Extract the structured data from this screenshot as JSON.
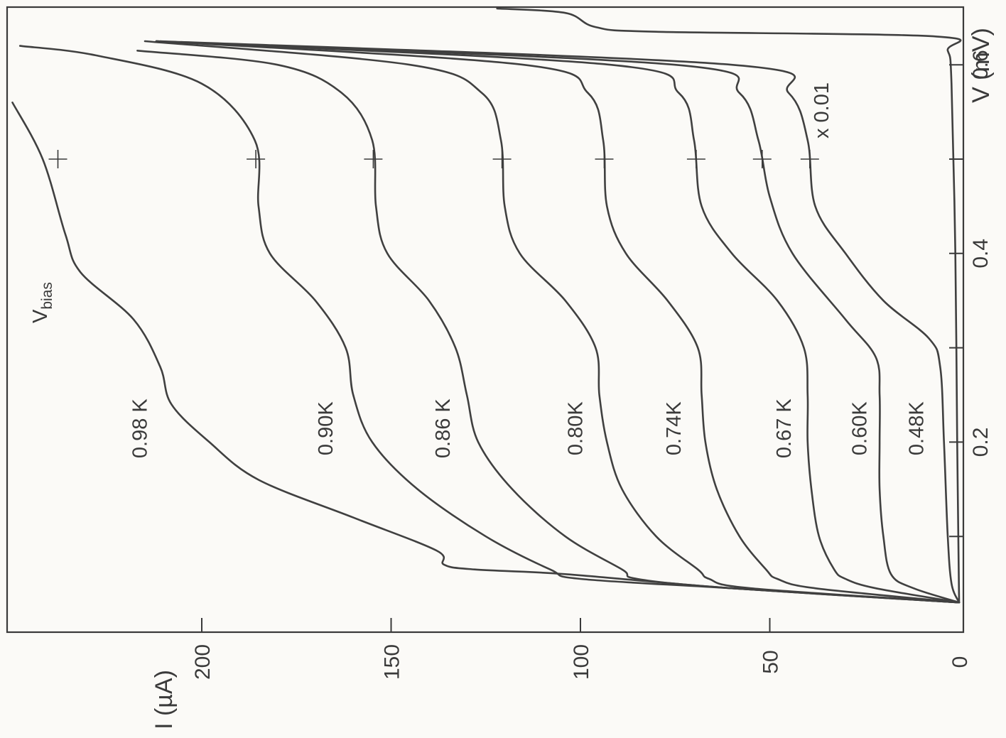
{
  "chart_data": {
    "type": "line",
    "title": "",
    "xlabel": "V (mV)",
    "ylabel": "I (µA)",
    "xlim": [
      0,
      0.74
    ],
    "ylim": [
      0,
      245
    ],
    "x_ticks": [
      {
        "value": 0.1,
        "label": ""
      },
      {
        "value": 0.2,
        "label": "0.2"
      },
      {
        "value": 0.3,
        "label": ""
      },
      {
        "value": 0.4,
        "label": "0.4"
      },
      {
        "value": 0.5,
        "label": ""
      },
      {
        "value": 0.6,
        "label": "0.6"
      },
      {
        "value": 0.7,
        "label": ""
      }
    ],
    "y_ticks": [
      {
        "value": 0,
        "label": "0"
      },
      {
        "value": 50,
        "label": "50"
      },
      {
        "value": 100,
        "label": "100"
      },
      {
        "value": 150,
        "label": "150"
      },
      {
        "value": 200,
        "label": "200"
      }
    ],
    "grid": false,
    "legend": "none",
    "annotations": {
      "vbias_label": "V",
      "vbias_sub": "bias",
      "vbias_x": 0.5,
      "scale_note": "x 0.01"
    },
    "series": [
      {
        "name": "0.98 K",
        "label_at": [
          0.225,
          210
        ],
        "points": [
          [
            0.03,
            0
          ],
          [
            0.045,
            60
          ],
          [
            0.06,
            104
          ],
          [
            0.065,
            128
          ],
          [
            0.07,
            136
          ],
          [
            0.085,
            138
          ],
          [
            0.12,
            160
          ],
          [
            0.16,
            185
          ],
          [
            0.2,
            198
          ],
          [
            0.24,
            208
          ],
          [
            0.28,
            211
          ],
          [
            0.33,
            218
          ],
          [
            0.38,
            232
          ],
          [
            0.42,
            236
          ],
          [
            0.5,
            242
          ],
          [
            0.56,
            250
          ]
        ]
      },
      {
        "name": "0.90K",
        "label_at": [
          0.225,
          161
        ],
        "points": [
          [
            0.03,
            0
          ],
          [
            0.045,
            60
          ],
          [
            0.055,
            100
          ],
          [
            0.065,
            108
          ],
          [
            0.1,
            125
          ],
          [
            0.15,
            143
          ],
          [
            0.2,
            155
          ],
          [
            0.25,
            160
          ],
          [
            0.3,
            162
          ],
          [
            0.35,
            170
          ],
          [
            0.4,
            182
          ],
          [
            0.45,
            185
          ],
          [
            0.52,
            186
          ],
          [
            0.58,
            200
          ],
          [
            0.61,
            228
          ],
          [
            0.62,
            248
          ]
        ]
      },
      {
        "name": "0.86 K",
        "label_at": [
          0.225,
          130
        ],
        "points": [
          [
            0.03,
            0
          ],
          [
            0.045,
            60
          ],
          [
            0.055,
            85
          ],
          [
            0.065,
            89
          ],
          [
            0.1,
            104
          ],
          [
            0.15,
            118
          ],
          [
            0.2,
            127
          ],
          [
            0.25,
            130
          ],
          [
            0.3,
            133
          ],
          [
            0.35,
            140
          ],
          [
            0.4,
            151
          ],
          [
            0.45,
            154
          ],
          [
            0.52,
            155
          ],
          [
            0.57,
            163
          ],
          [
            0.6,
            180
          ],
          [
            0.615,
            217
          ]
        ]
      },
      {
        "name": "0.80K",
        "label_at": [
          0.225,
          95
        ],
        "points": [
          [
            0.03,
            0
          ],
          [
            0.045,
            55
          ],
          [
            0.055,
            66
          ],
          [
            0.065,
            69
          ],
          [
            0.1,
            80
          ],
          [
            0.15,
            89
          ],
          [
            0.2,
            93
          ],
          [
            0.25,
            95
          ],
          [
            0.3,
            96
          ],
          [
            0.35,
            104
          ],
          [
            0.4,
            116
          ],
          [
            0.45,
            120
          ],
          [
            0.52,
            121
          ],
          [
            0.57,
            126
          ],
          [
            0.6,
            145
          ],
          [
            0.625,
            215
          ]
        ]
      },
      {
        "name": "0.74K",
        "label_at": [
          0.225,
          69
        ],
        "points": [
          [
            0.03,
            0
          ],
          [
            0.045,
            38
          ],
          [
            0.055,
            48
          ],
          [
            0.065,
            51
          ],
          [
            0.1,
            58
          ],
          [
            0.15,
            64
          ],
          [
            0.2,
            67
          ],
          [
            0.25,
            68
          ],
          [
            0.3,
            69
          ],
          [
            0.35,
            77
          ],
          [
            0.4,
            88
          ],
          [
            0.45,
            93
          ],
          [
            0.52,
            94
          ],
          [
            0.57,
            98
          ],
          [
            0.6,
            115
          ],
          [
            0.625,
            212
          ]
        ]
      },
      {
        "name": "0.67 K",
        "label_at": [
          0.225,
          40
        ],
        "points": [
          [
            0.03,
            0
          ],
          [
            0.045,
            22
          ],
          [
            0.055,
            30
          ],
          [
            0.065,
            33
          ],
          [
            0.1,
            37
          ],
          [
            0.15,
            39
          ],
          [
            0.2,
            40
          ],
          [
            0.25,
            40
          ],
          [
            0.3,
            41
          ],
          [
            0.35,
            48
          ],
          [
            0.4,
            60
          ],
          [
            0.45,
            68
          ],
          [
            0.52,
            70
          ],
          [
            0.57,
            74
          ],
          [
            0.6,
            92
          ],
          [
            0.625,
            212
          ]
        ]
      },
      {
        "name": "0.60K",
        "label_at": [
          0.225,
          20
        ],
        "points": [
          [
            0.03,
            0
          ],
          [
            0.045,
            12
          ],
          [
            0.06,
            18
          ],
          [
            0.1,
            20
          ],
          [
            0.15,
            21
          ],
          [
            0.2,
            21
          ],
          [
            0.25,
            21
          ],
          [
            0.29,
            22
          ],
          [
            0.33,
            30
          ],
          [
            0.4,
            44
          ],
          [
            0.46,
            50
          ],
          [
            0.52,
            53
          ],
          [
            0.57,
            58
          ],
          [
            0.6,
            75
          ],
          [
            0.625,
            212
          ]
        ]
      },
      {
        "name": "0.48K",
        "label_at": [
          0.225,
          5
        ],
        "points": [
          [
            0.03,
            0
          ],
          [
            0.05,
            2
          ],
          [
            0.1,
            3
          ],
          [
            0.2,
            4
          ],
          [
            0.28,
            5
          ],
          [
            0.31,
            8
          ],
          [
            0.35,
            20
          ],
          [
            0.4,
            30
          ],
          [
            0.45,
            38
          ],
          [
            0.52,
            40
          ],
          [
            0.57,
            45
          ],
          [
            0.6,
            60
          ],
          [
            0.625,
            211
          ]
        ]
      },
      {
        "name": "",
        "label_at": null,
        "points": [
          [
            0.03,
            0
          ],
          [
            0.2,
            0.5
          ],
          [
            0.4,
            1
          ],
          [
            0.58,
            2
          ],
          [
            0.615,
            3
          ],
          [
            0.63,
            6
          ],
          [
            0.635,
            80
          ],
          [
            0.64,
            96
          ],
          [
            0.655,
            104
          ],
          [
            0.672,
            122
          ]
        ]
      }
    ]
  }
}
